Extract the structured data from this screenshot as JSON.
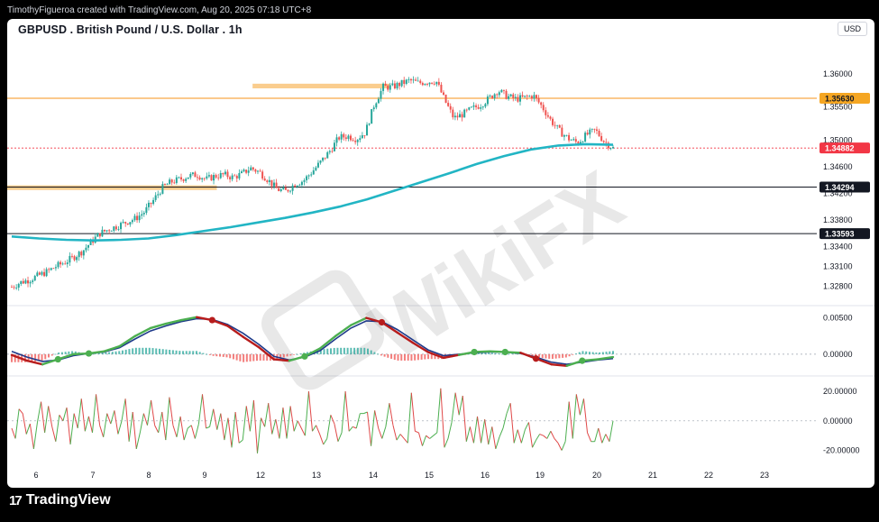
{
  "header": {
    "attribution": "TimothyFigueroa created with TradingView.com, Aug 20, 2025 07:18 UTC+8"
  },
  "chart_header": {
    "symbol": "GBPUSD . British Pound / U.S. Dollar . 1h",
    "currency": "USD"
  },
  "footer": {
    "brand": "TradingView"
  },
  "watermark": {
    "text": "WikiFX"
  },
  "colors": {
    "bull": "#26a69a",
    "bear": "#ef5350",
    "ema": "#22b5c4",
    "zone": "#f9c47a",
    "level_orange": "#f7931a",
    "level_black": "#131722",
    "price_red": "#f23645",
    "macd_fast": "#4caf50",
    "macd_slow": "#1e3a8a",
    "macd_red": "#b71c1c",
    "osc_green": "#4caf50",
    "osc_red": "#e04848"
  },
  "chart_data": [
    {
      "type": "candlestick",
      "title": "GBPUSD . British Pound / U.S. Dollar . 1h",
      "x_ticks": [
        "6",
        "7",
        "8",
        "9",
        "12",
        "13",
        "14",
        "15",
        "16",
        "19",
        "20",
        "21",
        "22",
        "23"
      ],
      "y_ticks": [
        "1.36000",
        "1.35500",
        "1.35000",
        "1.34600",
        "1.34200",
        "1.33800",
        "1.33400",
        "1.33100",
        "1.32800"
      ],
      "ylim": [
        1.3255,
        1.3635
      ],
      "close_path": [
        1.3279,
        1.3286,
        1.329,
        1.3296,
        1.3302,
        1.331,
        1.3316,
        1.3324,
        1.3333,
        1.3347,
        1.336,
        1.3366,
        1.3371,
        1.3377,
        1.3382,
        1.3392,
        1.3409,
        1.3428,
        1.3437,
        1.3441,
        1.3446,
        1.3448,
        1.3441,
        1.3446,
        1.3448,
        1.3444,
        1.3449,
        1.3458,
        1.3452,
        1.344,
        1.3426,
        1.3423,
        1.3434,
        1.3439,
        1.3453,
        1.3468,
        1.3484,
        1.3504,
        1.3506,
        1.3502,
        1.3512,
        1.3554,
        1.358,
        1.358,
        1.3585,
        1.359,
        1.3586,
        1.3588,
        1.3589,
        1.3559,
        1.3533,
        1.3539,
        1.3547,
        1.3553,
        1.3563,
        1.3575,
        1.3566,
        1.3562,
        1.3564,
        1.3567,
        1.355,
        1.3529,
        1.3513,
        1.3502,
        1.3496,
        1.3508,
        1.3515,
        1.3498,
        1.3488
      ],
      "ema200_path": [
        1.3355,
        1.3352,
        1.335,
        1.3349,
        1.335,
        1.3352,
        1.3357,
        1.3363,
        1.3369,
        1.3376,
        1.3383,
        1.3391,
        1.34,
        1.3411,
        1.3424,
        1.3437,
        1.345,
        1.3464,
        1.3476,
        1.3486,
        1.3492,
        1.3494,
        1.3493
      ],
      "levels": [
        {
          "label": "1.35630",
          "value": 1.3563,
          "color": "orange",
          "solid_tag": true
        },
        {
          "label": "1.34882",
          "value": 1.34882,
          "color": "red",
          "solid_tag": true
        },
        {
          "label": "1.34294",
          "value": 1.34294,
          "color": "black",
          "solid_tag": true
        },
        {
          "label": "1.33593",
          "value": 1.33593,
          "color": "black",
          "solid_tag": true
        }
      ],
      "zones": [
        {
          "value_top": 1.3585,
          "value_bottom": 1.3578,
          "from": 0.405,
          "to": 0.632
        },
        {
          "value_top": 1.3432,
          "value_bottom": 1.3425,
          "from": 0.0,
          "to": 0.346
        }
      ]
    },
    {
      "type": "line",
      "name": "macd_pane",
      "y_ticks": [
        "0.00500",
        "0.00000"
      ],
      "ylim": [
        -0.0025,
        0.0062
      ],
      "fast": [
        -0.0001,
        -0.0009,
        -0.0014,
        -0.0007,
        0.0,
        0.0001,
        0.0004,
        0.0011,
        0.0025,
        0.0036,
        0.0042,
        0.0047,
        0.0051,
        0.0047,
        0.0039,
        0.0024,
        0.001,
        -0.0007,
        -0.0009,
        -0.0003,
        0.0008,
        0.0025,
        0.004,
        0.005,
        0.0044,
        0.003,
        0.0016,
        0.0003,
        -0.0005,
        -0.0001,
        0.0003,
        0.0004,
        0.0003,
        0.0002,
        -0.0006,
        -0.0014,
        -0.0016,
        -0.0009,
        -0.0007,
        -0.0004
      ],
      "slow": [
        0.0004,
        -0.0004,
        -0.001,
        -0.0008,
        -0.0002,
        0.0001,
        0.0003,
        0.0009,
        0.0021,
        0.0032,
        0.0039,
        0.0045,
        0.0049,
        0.0048,
        0.0041,
        0.0029,
        0.0014,
        -0.0003,
        -0.0008,
        -0.0004,
        0.0005,
        0.0021,
        0.0036,
        0.0046,
        0.0045,
        0.0034,
        0.002,
        0.0006,
        -0.0002,
        0.0,
        0.0002,
        0.0003,
        0.0003,
        0.0001,
        -0.0004,
        -0.0011,
        -0.0014,
        -0.0011,
        -0.0008,
        -0.0006
      ]
    },
    {
      "type": "line",
      "name": "oscillator_pane",
      "y_ticks": [
        "20.00000",
        "0.00000",
        "-20.00000"
      ],
      "ylim": [
        -27,
        28
      ],
      "values": [
        -5,
        -12,
        8,
        5,
        -9,
        -2,
        -19,
        -1,
        13,
        -8,
        10,
        -4,
        -14,
        4,
        0,
        9,
        -16,
        5,
        -5,
        15,
        -7,
        3,
        -8,
        18,
        -3,
        -11,
        5,
        -2,
        7,
        -9,
        0,
        15,
        -14,
        6,
        -19,
        -8,
        5,
        -3,
        14,
        -3,
        -8,
        6,
        -13,
        16,
        -3,
        -11,
        3,
        -13,
        -5,
        -3,
        -12,
        -2,
        18,
        -5,
        -4,
        8,
        -6,
        5,
        -13,
        2,
        -18,
        6,
        -15,
        -13,
        10,
        -7,
        14,
        -22,
        2,
        -4,
        12,
        -9,
        1,
        -12,
        9,
        -12,
        10,
        -7,
        0,
        -5,
        -10,
        20,
        -7,
        -3,
        -9,
        -16,
        -12,
        4,
        -2,
        -14,
        -8,
        20,
        -7,
        -4,
        -5,
        5,
        5,
        6,
        -17,
        7,
        -5,
        -12,
        -4,
        12,
        -3,
        -13,
        -9,
        -12,
        -15,
        19,
        -7,
        -8,
        -17,
        -10,
        -12,
        -10,
        -8,
        22,
        -18,
        -12,
        -1,
        19,
        4,
        17,
        -14,
        -4,
        -15,
        3,
        -15,
        1,
        -16,
        -4,
        -19,
        -11,
        -5,
        5,
        12,
        -15,
        -6,
        -15,
        -6,
        -1,
        -18,
        -13,
        -9,
        -10,
        -12,
        -7,
        -12,
        -15,
        -20,
        -14,
        13,
        -12,
        18,
        4,
        15,
        -8,
        -14,
        -14,
        -5,
        -15,
        -9,
        -14,
        0
      ]
    }
  ]
}
